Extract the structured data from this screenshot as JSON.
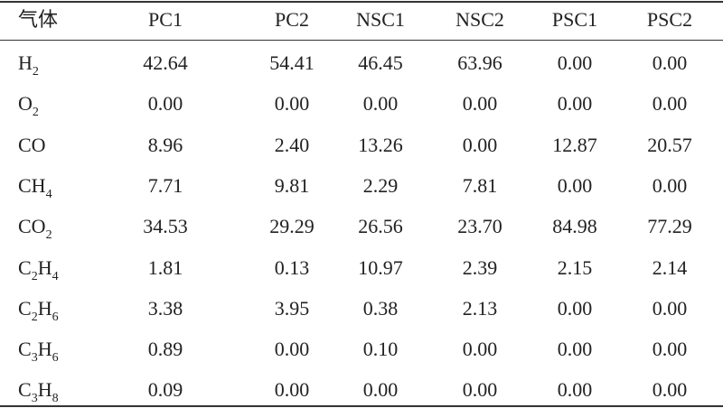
{
  "table": {
    "header": [
      "气体",
      "PC1",
      "PC2",
      "NSC1",
      "NSC2",
      "PSC1",
      "PSC2"
    ],
    "rows": [
      [
        [
          "H",
          "2"
        ],
        "42.64",
        "54.41",
        "46.45",
        "63.96",
        "0.00",
        "0.00"
      ],
      [
        [
          "O",
          "2"
        ],
        "0.00",
        "0.00",
        "0.00",
        "0.00",
        "0.00",
        "0.00"
      ],
      [
        [
          "CO"
        ],
        "8.96",
        "2.40",
        "13.26",
        "0.00",
        "12.87",
        "20.57"
      ],
      [
        [
          "CH",
          "4"
        ],
        "7.71",
        "9.81",
        "2.29",
        "7.81",
        "0.00",
        "0.00"
      ],
      [
        [
          "CO",
          "2"
        ],
        "34.53",
        "29.29",
        "26.56",
        "23.70",
        "84.98",
        "77.29"
      ],
      [
        [
          "C",
          "2",
          "H",
          "4"
        ],
        "1.81",
        "0.13",
        "10.97",
        "2.39",
        "2.15",
        "2.14"
      ],
      [
        [
          "C",
          "2",
          "H",
          "6"
        ],
        "3.38",
        "3.95",
        "0.38",
        "2.13",
        "0.00",
        "0.00"
      ],
      [
        [
          "C",
          "3",
          "H",
          "6"
        ],
        "0.89",
        "0.00",
        "0.10",
        "0.00",
        "0.00",
        "0.00"
      ],
      [
        [
          "C",
          "3",
          "H",
          "8"
        ],
        "0.09",
        "0.00",
        "0.00",
        "0.00",
        "0.00",
        "0.00"
      ]
    ]
  }
}
